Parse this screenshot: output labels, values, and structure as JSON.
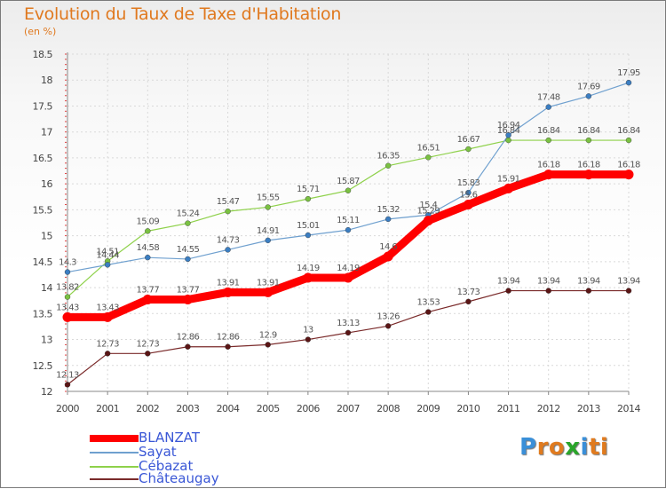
{
  "title": "Evolution du Taux de Taxe d'Habitation",
  "subtitle": "(en %)",
  "chart_data": {
    "type": "line",
    "categories": [
      "2000",
      "2001",
      "2002",
      "2003",
      "2004",
      "2005",
      "2006",
      "2007",
      "2008",
      "2009",
      "2010",
      "2011",
      "2012",
      "2013",
      "2014"
    ],
    "ylim": [
      12,
      18.5
    ],
    "yticks": [
      "12",
      "12.5",
      "13",
      "13.5",
      "14",
      "14.5",
      "15",
      "15.5",
      "16",
      "16.5",
      "17",
      "17.5",
      "18",
      "18.5"
    ],
    "series": [
      {
        "name": "BLANZAT",
        "color": "#ff0000",
        "marker": "#ff0000",
        "width": 9,
        "values": [
          13.43,
          13.43,
          13.77,
          13.77,
          13.91,
          13.91,
          14.19,
          14.19,
          14.6,
          15.29,
          15.6,
          15.91,
          16.18,
          16.18,
          16.18
        ],
        "labels": [
          "13.43",
          "13.43",
          "13.77",
          "13.77",
          "13.91",
          "13.91",
          "14.19",
          "14.19",
          "14.6",
          "15.29",
          "15.6",
          "15.91",
          "16.18",
          "16.18",
          "16.18"
        ]
      },
      {
        "name": "Sayat",
        "color": "#6fa0cf",
        "marker": "#3b7ec2",
        "width": 1.2,
        "values": [
          14.3,
          14.44,
          14.58,
          14.55,
          14.73,
          14.91,
          15.01,
          15.11,
          15.32,
          15.4,
          15.83,
          16.94,
          17.48,
          17.69,
          17.95
        ],
        "labels": [
          "14.3",
          "14.44",
          "14.58",
          "14.55",
          "14.73",
          "14.91",
          "15.01",
          "15.11",
          "15.32",
          "15.4",
          "15.83",
          "16.94",
          "17.48",
          "17.69",
          "17.95"
        ]
      },
      {
        "name": "Cébazat",
        "color": "#8ed14a",
        "marker": "#7ac142",
        "width": 1.2,
        "values": [
          13.82,
          14.51,
          15.09,
          15.24,
          15.47,
          15.55,
          15.71,
          15.87,
          16.35,
          16.51,
          16.67,
          16.84,
          16.84,
          16.84,
          16.84
        ],
        "labels": [
          "13.82",
          "14.51",
          "15.09",
          "15.24",
          "15.47",
          "15.55",
          "15.71",
          "15.87",
          "16.35",
          "16.51",
          "16.67",
          "16.84",
          "16.84",
          "16.84",
          "16.84"
        ]
      },
      {
        "name": "Châteaugay",
        "color": "#7a2a2a",
        "marker": "#5a1515",
        "width": 1.2,
        "values": [
          12.13,
          12.73,
          12.73,
          12.86,
          12.86,
          12.9,
          13,
          13.13,
          13.26,
          13.53,
          13.73,
          13.94,
          13.94,
          13.94,
          13.94
        ],
        "labels": [
          "12.13",
          "12.73",
          "12.73",
          "12.86",
          "12.86",
          "12.9",
          "13",
          "13.13",
          "13.26",
          "13.53",
          "13.73",
          "13.94",
          "13.94",
          "13.94",
          "13.94"
        ]
      }
    ]
  },
  "legend": [
    {
      "label": "BLANZAT"
    },
    {
      "label": "Sayat"
    },
    {
      "label": "Cébazat"
    },
    {
      "label": "Châteaugay"
    }
  ],
  "logo": {
    "letters": [
      "P",
      "r",
      "o",
      "x",
      "i",
      "t",
      "i"
    ],
    "colors": [
      "#3a8fd8",
      "#e07b1f",
      "#e07b1f",
      "#2aa52a",
      "#3a8fd8",
      "#e07b1f",
      "#e07b1f"
    ]
  }
}
